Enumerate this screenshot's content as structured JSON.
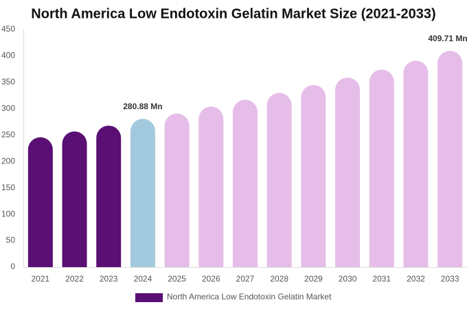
{
  "chart_data": {
    "type": "bar",
    "title": "North America Low Endotoxin Gelatin Market Size (2021-2033)",
    "categories": [
      "2021",
      "2022",
      "2023",
      "2024",
      "2025",
      "2026",
      "2027",
      "2028",
      "2029",
      "2030",
      "2031",
      "2032",
      "2033"
    ],
    "series": [
      {
        "name": "North America Low Endotoxin Gelatin Market",
        "color": "#5a0f74",
        "values": [
          246,
          257,
          268,
          280.88,
          291,
          304,
          317,
          330,
          345,
          359,
          374,
          391,
          409.71
        ],
        "value_labels": [
          null,
          null,
          null,
          "280.88 Mn",
          null,
          null,
          null,
          null,
          null,
          null,
          null,
          null,
          "409.71 Mn"
        ],
        "colors": [
          "#5a0f74",
          "#5a0f74",
          "#5a0f74",
          "#a3c9de",
          "#e6bde8",
          "#e6bde8",
          "#e6bde8",
          "#e6bde8",
          "#e6bde8",
          "#e6bde8",
          "#e6bde8",
          "#e6bde8",
          "#e6bde8"
        ]
      }
    ],
    "ylim": [
      0,
      450
    ],
    "yticks": [
      0,
      50,
      100,
      150,
      200,
      250,
      300,
      350,
      400,
      450
    ],
    "grid": false
  }
}
